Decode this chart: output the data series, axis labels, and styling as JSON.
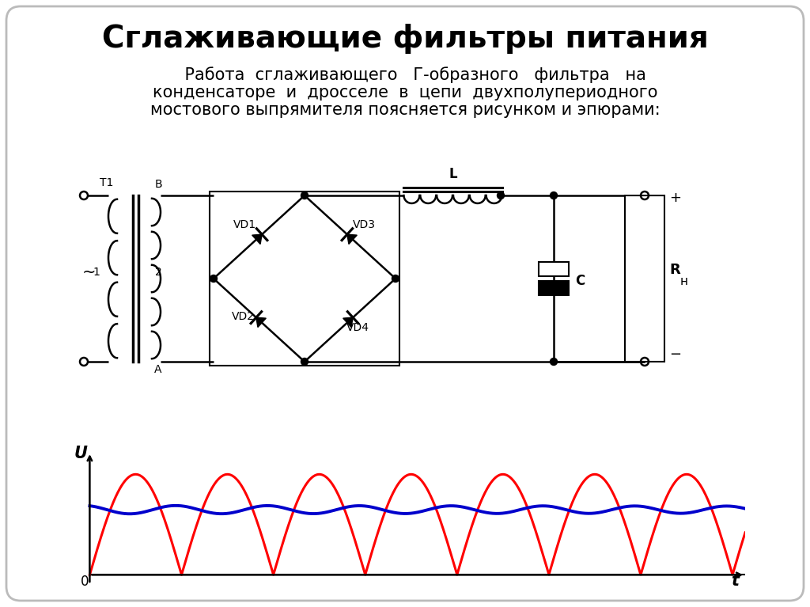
{
  "title": "Сглаживающие фильтры питания",
  "background_color": "#ffffff",
  "title_fontsize": 28,
  "subtitle_fontsize": 15,
  "red_wave_color": "#ff0000",
  "blue_wave_color": "#0000cc",
  "circuit_color": "#000000",
  "subtitle_lines": [
    "    Работа  сглаживающего   Г-образного   фильтра   на",
    "конденсаторе  и  дросселе  в  цепи  двухполупериодного",
    "мостового выпрямителя поясняется рисунком и эпюрами:"
  ]
}
